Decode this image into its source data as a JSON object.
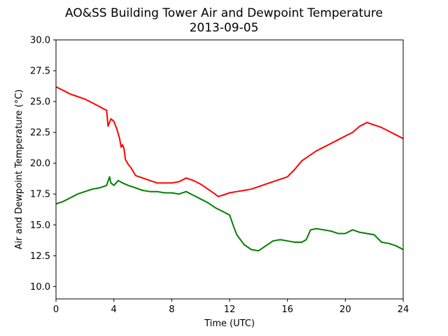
{
  "chart_data": {
    "type": "line",
    "title": "AO&SS Building Tower Air and Dewpoint Temperature",
    "subtitle": "2013-09-05",
    "xlabel": "Time (UTC)",
    "ylabel": "Air and Dewpoint Temperature (°C)",
    "xlim": [
      0,
      24
    ],
    "ylim": [
      9.0,
      30.0
    ],
    "xticks": [
      0,
      4,
      8,
      12,
      16,
      20,
      24
    ],
    "xtick_labels": [
      "0",
      "4",
      "8",
      "12",
      "16",
      "20",
      "24"
    ],
    "yticks": [
      10.0,
      12.5,
      15.0,
      17.5,
      20.0,
      22.5,
      25.0,
      27.5,
      30.0
    ],
    "ytick_labels": [
      "10.0",
      "12.5",
      "15.0",
      "17.5",
      "20.0",
      "22.5",
      "25.0",
      "27.5",
      "30.0"
    ],
    "grid": false,
    "legend": "none",
    "series": [
      {
        "color": "#ff0000",
        "x": [
          0,
          0.5,
          1,
          1.5,
          2,
          2.5,
          3,
          3.3,
          3.5,
          3.6,
          3.8,
          4.0,
          4.2,
          4.4,
          4.5,
          4.6,
          4.7,
          4.8,
          5.0,
          5.2,
          5.5,
          6,
          6.5,
          7,
          7.5,
          8,
          8.5,
          9,
          9.5,
          10,
          10.5,
          11,
          11.2,
          11.5,
          12,
          12.5,
          13,
          13.5,
          14,
          14.5,
          15,
          15.5,
          16,
          16.5,
          17,
          17.5,
          18,
          18.5,
          19,
          19.5,
          20,
          20.5,
          21,
          21.5,
          22,
          22.5,
          23,
          23.5,
          24
        ],
        "y": [
          26.2,
          25.9,
          25.6,
          25.4,
          25.2,
          24.9,
          24.6,
          24.4,
          24.3,
          23.0,
          23.6,
          23.4,
          22.8,
          22.0,
          21.3,
          21.5,
          21.2,
          20.3,
          19.9,
          19.6,
          19.0,
          18.8,
          18.6,
          18.4,
          18.4,
          18.4,
          18.5,
          18.8,
          18.6,
          18.3,
          17.9,
          17.5,
          17.3,
          17.4,
          17.6,
          17.7,
          17.8,
          17.9,
          18.1,
          18.3,
          18.5,
          18.7,
          18.9,
          19.5,
          20.2,
          20.6,
          21.0,
          21.3,
          21.6,
          21.9,
          22.2,
          22.5,
          23.0,
          23.3,
          23.1,
          22.9,
          22.6,
          22.3,
          22.0
        ]
      },
      {
        "color": "#008000",
        "x": [
          0,
          0.5,
          1,
          1.5,
          2,
          2.5,
          3,
          3.5,
          3.7,
          3.8,
          4.0,
          4.3,
          4.6,
          5,
          5.5,
          6,
          6.5,
          7,
          7.5,
          8,
          8.5,
          9,
          9.5,
          10,
          10.5,
          11,
          11.5,
          12,
          12.3,
          12.5,
          13,
          13.5,
          14,
          14.5,
          15,
          15.5,
          16,
          16.5,
          17,
          17.3,
          17.6,
          18,
          18.5,
          19,
          19.5,
          20,
          20.5,
          21,
          21.5,
          22,
          22.5,
          23,
          23.5,
          24
        ],
        "y": [
          16.7,
          16.9,
          17.2,
          17.5,
          17.7,
          17.9,
          18.0,
          18.2,
          18.9,
          18.4,
          18.2,
          18.6,
          18.4,
          18.2,
          18.0,
          17.8,
          17.7,
          17.7,
          17.6,
          17.6,
          17.5,
          17.7,
          17.4,
          17.1,
          16.8,
          16.4,
          16.1,
          15.8,
          14.8,
          14.2,
          13.4,
          13.0,
          12.9,
          13.3,
          13.7,
          13.8,
          13.7,
          13.6,
          13.6,
          13.8,
          14.6,
          14.7,
          14.6,
          14.5,
          14.3,
          14.3,
          14.6,
          14.4,
          14.3,
          14.2,
          13.6,
          13.5,
          13.3,
          13.0
        ]
      }
    ]
  }
}
